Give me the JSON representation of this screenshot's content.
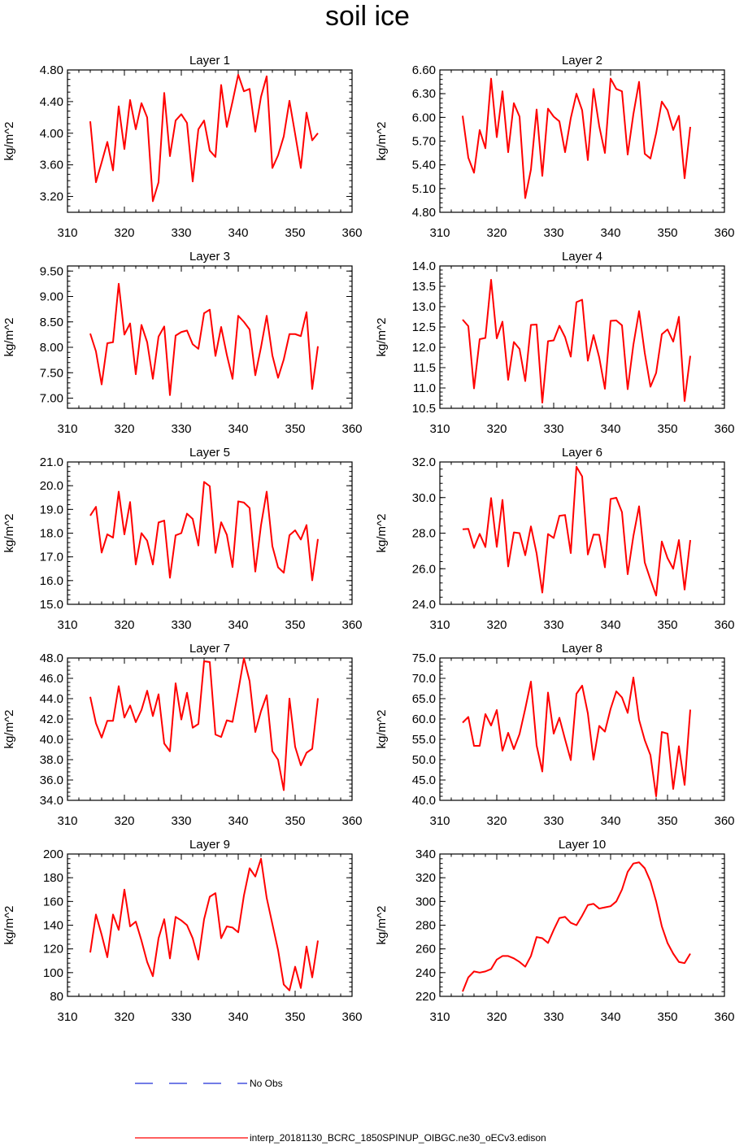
{
  "title": "soil ice",
  "legend": {
    "obs": {
      "label": "No Obs",
      "color": "#1e2fd6",
      "style": "dashed"
    },
    "model": {
      "label": "interp_20181130_BCRC_1850SPINUP_OIBGC.ne30_oECv3.edison",
      "color": "#ff0000",
      "style": "solid"
    }
  },
  "chart_data": [
    {
      "type": "line",
      "title": "Layer 1",
      "ylabel": "kg/m^2",
      "xlim": [
        310,
        360
      ],
      "xticks": [
        310,
        320,
        330,
        340,
        350,
        360
      ],
      "ylim": [
        3.0,
        4.8
      ],
      "yticks": [
        "3.20",
        "3.60",
        "4.00",
        "4.40",
        "4.80"
      ],
      "x_start": 314,
      "values": [
        4.15,
        3.38,
        3.63,
        3.89,
        3.53,
        4.34,
        3.8,
        4.42,
        4.05,
        4.38,
        4.2,
        3.14,
        3.38,
        4.51,
        3.71,
        4.16,
        4.24,
        4.13,
        3.39,
        4.05,
        4.16,
        3.78,
        3.7,
        4.61,
        4.08,
        4.4,
        4.74,
        4.53,
        4.56,
        4.02,
        4.46,
        4.72,
        3.56,
        3.72,
        3.96,
        4.41,
        3.99,
        3.56,
        4.26,
        3.91,
        4.0
      ]
    },
    {
      "type": "line",
      "title": "Layer 2",
      "ylabel": "kg/m^2",
      "xlim": [
        310,
        360
      ],
      "xticks": [
        310,
        320,
        330,
        340,
        350,
        360
      ],
      "ylim": [
        4.8,
        6.6
      ],
      "yticks": [
        "4.80",
        "5.10",
        "5.40",
        "5.70",
        "6.00",
        "6.30",
        "6.60"
      ],
      "x_start": 314,
      "values": [
        6.02,
        5.49,
        5.3,
        5.84,
        5.61,
        6.49,
        5.75,
        6.33,
        5.56,
        6.18,
        6.01,
        4.98,
        5.34,
        6.1,
        5.26,
        6.11,
        6.01,
        5.95,
        5.56,
        5.99,
        6.3,
        6.09,
        5.46,
        6.36,
        5.89,
        5.55,
        6.49,
        6.36,
        6.33,
        5.53,
        6.04,
        6.45,
        5.54,
        5.48,
        5.8,
        6.2,
        6.09,
        5.84,
        6.02,
        5.23,
        5.88
      ]
    },
    {
      "type": "line",
      "title": "Layer 3",
      "ylabel": "kg/m^2",
      "xlim": [
        310,
        360
      ],
      "xticks": [
        310,
        320,
        330,
        340,
        350,
        360
      ],
      "ylim": [
        6.8,
        9.6
      ],
      "yticks": [
        "7.00",
        "7.50",
        "8.00",
        "8.50",
        "9.00",
        "9.50"
      ],
      "x_start": 314,
      "values": [
        8.27,
        7.92,
        7.27,
        8.08,
        8.1,
        9.25,
        8.25,
        8.47,
        7.47,
        8.44,
        8.1,
        7.38,
        8.21,
        8.41,
        7.06,
        8.23,
        8.3,
        8.33,
        8.06,
        7.97,
        8.67,
        8.74,
        7.83,
        8.4,
        7.85,
        7.38,
        8.62,
        8.5,
        8.35,
        7.45,
        8.0,
        8.62,
        7.84,
        7.4,
        7.76,
        8.26,
        8.26,
        8.22,
        8.69,
        7.18,
        8.02
      ]
    },
    {
      "type": "line",
      "title": "Layer 4",
      "ylabel": "kg/m^2",
      "xlim": [
        310,
        360
      ],
      "xticks": [
        310,
        320,
        330,
        340,
        350,
        360
      ],
      "ylim": [
        10.5,
        14.0
      ],
      "yticks": [
        "10.5",
        "11.0",
        "11.5",
        "12.0",
        "12.5",
        "13.0",
        "13.5",
        "14.0"
      ],
      "x_start": 314,
      "values": [
        12.68,
        12.52,
        10.99,
        12.2,
        12.23,
        13.66,
        12.22,
        12.63,
        11.2,
        12.13,
        11.96,
        11.17,
        12.55,
        12.56,
        10.64,
        12.15,
        12.17,
        12.53,
        12.25,
        11.77,
        13.11,
        13.17,
        11.67,
        12.3,
        11.75,
        10.98,
        12.65,
        12.66,
        12.54,
        10.97,
        12.06,
        12.89,
        11.86,
        11.03,
        11.37,
        12.32,
        12.44,
        12.14,
        12.75,
        10.68,
        11.79
      ]
    },
    {
      "type": "line",
      "title": "Layer 5",
      "ylabel": "kg/m^2",
      "xlim": [
        310,
        360
      ],
      "xticks": [
        310,
        320,
        330,
        340,
        350,
        360
      ],
      "ylim": [
        15.0,
        21.0
      ],
      "yticks": [
        "15.0",
        "16.0",
        "17.0",
        "18.0",
        "19.0",
        "20.0",
        "21.0"
      ],
      "x_start": 314,
      "values": [
        18.74,
        19.11,
        17.18,
        17.95,
        17.81,
        19.75,
        17.95,
        19.31,
        16.68,
        18.0,
        17.68,
        16.68,
        18.45,
        18.53,
        16.12,
        17.91,
        18.0,
        18.82,
        18.6,
        17.48,
        20.16,
        19.98,
        17.17,
        18.46,
        17.93,
        16.57,
        19.34,
        19.29,
        19.06,
        16.38,
        18.33,
        19.75,
        17.45,
        16.56,
        16.33,
        17.91,
        18.12,
        17.73,
        18.34,
        16.01,
        17.75
      ]
    },
    {
      "type": "line",
      "title": "Layer 6",
      "ylabel": "kg/m^2",
      "xlim": [
        310,
        360
      ],
      "xticks": [
        310,
        320,
        330,
        340,
        350,
        360
      ],
      "ylim": [
        24.0,
        32.0
      ],
      "yticks": [
        "24.0",
        "26.0",
        "28.0",
        "30.0",
        "32.0"
      ],
      "x_start": 314,
      "values": [
        28.22,
        28.24,
        27.17,
        27.96,
        27.22,
        29.97,
        27.23,
        29.87,
        26.13,
        28.04,
        28.0,
        26.76,
        28.38,
        26.86,
        24.66,
        27.95,
        27.73,
        28.97,
        29.02,
        26.88,
        31.73,
        31.19,
        26.8,
        27.92,
        27.91,
        26.08,
        29.92,
        29.99,
        29.18,
        25.69,
        27.83,
        29.51,
        26.35,
        25.39,
        24.49,
        27.53,
        26.6,
        26.0,
        27.61,
        24.83,
        27.61
      ]
    },
    {
      "type": "line",
      "title": "Layer 7",
      "ylabel": "kg/m^2",
      "xlim": [
        310,
        360
      ],
      "xticks": [
        310,
        320,
        330,
        340,
        350,
        360
      ],
      "ylim": [
        34.0,
        48.0
      ],
      "yticks": [
        "34.0",
        "36.0",
        "38.0",
        "40.0",
        "42.0",
        "44.0",
        "46.0",
        "48.0"
      ],
      "x_start": 314,
      "values": [
        44.18,
        41.58,
        40.17,
        41.82,
        41.82,
        45.23,
        42.14,
        43.33,
        41.69,
        42.88,
        44.78,
        42.29,
        44.43,
        39.59,
        38.82,
        45.51,
        41.95,
        44.58,
        41.14,
        41.51,
        47.68,
        47.6,
        40.47,
        40.23,
        41.87,
        41.72,
        44.75,
        47.98,
        45.72,
        40.72,
        42.76,
        44.34,
        38.83,
        37.99,
        35.0,
        44.01,
        39.27,
        37.44,
        38.68,
        39.07,
        44.04
      ]
    },
    {
      "type": "line",
      "title": "Layer 8",
      "ylabel": "kg/m^2",
      "xlim": [
        310,
        360
      ],
      "xticks": [
        310,
        320,
        330,
        340,
        350,
        360
      ],
      "ylim": [
        40.0,
        75.0
      ],
      "yticks": [
        "40.0",
        "45.0",
        "50.0",
        "55.0",
        "60.0",
        "65.0",
        "70.0",
        "75.0"
      ],
      "x_start": 314,
      "values": [
        59.1,
        60.5,
        53.4,
        53.4,
        61.2,
        58.4,
        62.2,
        52.2,
        56.6,
        52.6,
        56.3,
        62.5,
        69.2,
        53.5,
        47.1,
        66.5,
        56.4,
        60.3,
        55.0,
        49.9,
        66.2,
        68.2,
        61.4,
        50.0,
        58.3,
        56.9,
        62.5,
        66.8,
        65.3,
        61.5,
        70.2,
        59.8,
        54.8,
        51.1,
        41.0,
        56.8,
        56.4,
        42.8,
        53.3,
        43.8,
        62.3
      ]
    },
    {
      "type": "line",
      "title": "Layer 9",
      "ylabel": "kg/m^2",
      "xlim": [
        310,
        360
      ],
      "xticks": [
        310,
        320,
        330,
        340,
        350,
        360
      ],
      "ylim": [
        80,
        200
      ],
      "yticks": [
        "80",
        "100",
        "120",
        "140",
        "160",
        "180",
        "200"
      ],
      "x_start": 314,
      "values": [
        117,
        149,
        132,
        113,
        149,
        136,
        170,
        139,
        143,
        127,
        109,
        97,
        129,
        145,
        112,
        147,
        144,
        140,
        129,
        111,
        145,
        164,
        167,
        129,
        139,
        138,
        134,
        165,
        188,
        181,
        196,
        163,
        141,
        119,
        90,
        85,
        105,
        87,
        122,
        96,
        127
      ]
    },
    {
      "type": "line",
      "title": "Layer 10",
      "ylabel": "kg/m^2",
      "xlim": [
        310,
        360
      ],
      "xticks": [
        310,
        320,
        330,
        340,
        350,
        360
      ],
      "ylim": [
        220,
        340
      ],
      "yticks": [
        "220",
        "240",
        "260",
        "280",
        "300",
        "320",
        "340"
      ],
      "x_start": 314,
      "values": [
        224,
        236,
        241,
        240,
        241,
        243,
        251,
        254,
        254,
        252,
        249,
        245,
        254,
        270,
        269,
        265,
        276,
        286,
        287,
        282,
        280,
        288,
        297,
        298,
        294,
        295,
        296,
        300,
        310,
        325,
        332,
        333,
        328,
        317,
        300,
        279,
        265,
        256,
        249,
        248,
        256
      ]
    }
  ]
}
